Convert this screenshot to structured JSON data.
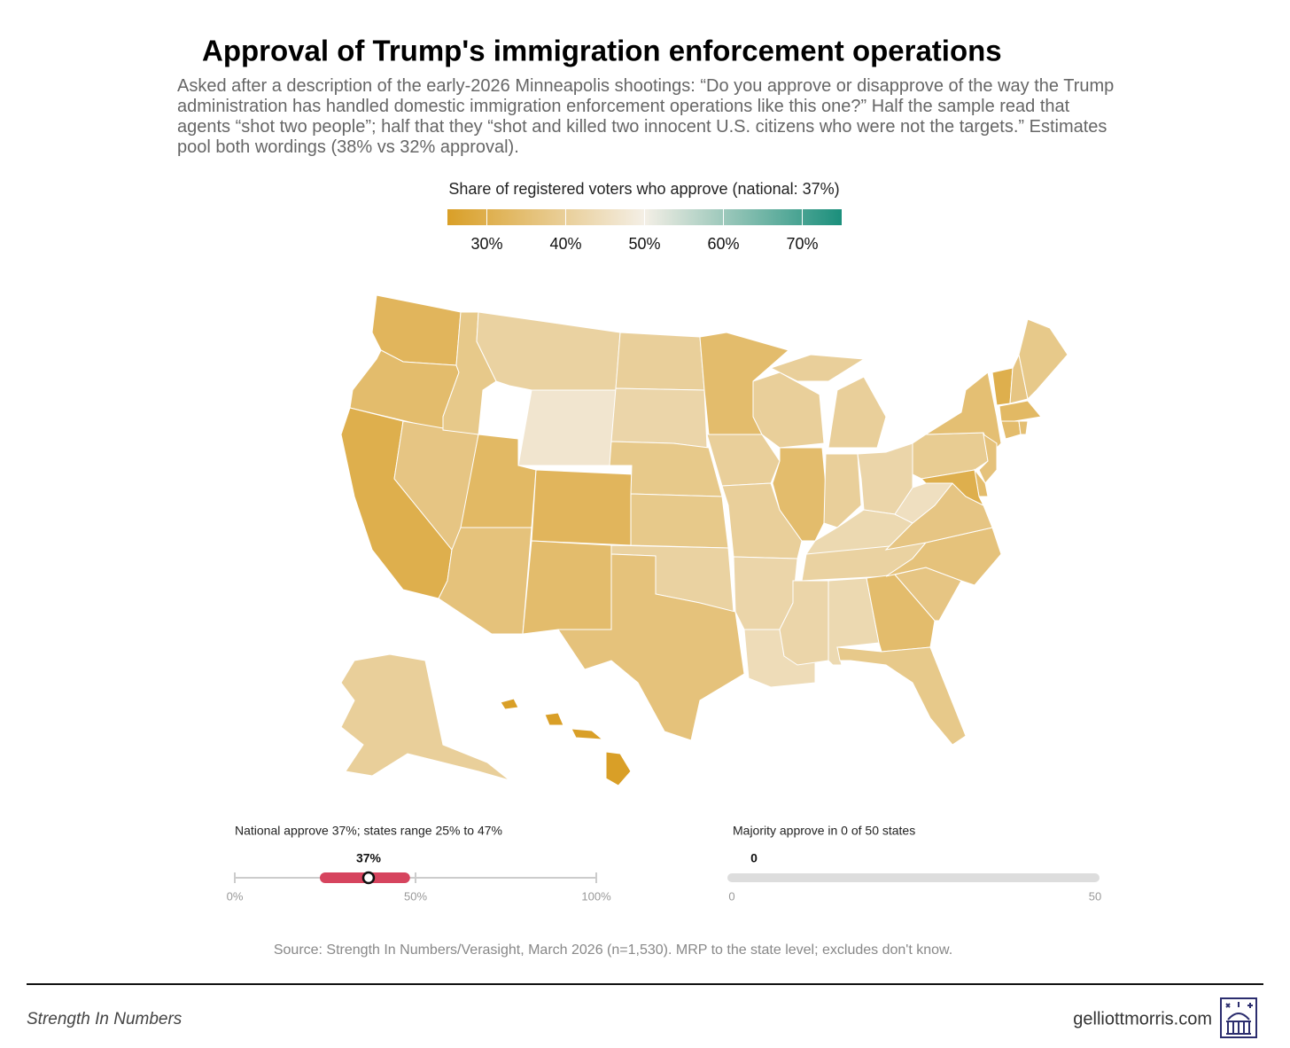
{
  "chart_data": {
    "type": "choropleth",
    "title": "Approval of Trump's immigration enforcement operations",
    "subtitle": "Asked after a description of the early-2026 Minneapolis shootings: “Do you approve or disapprove of the way the Trump administration has handled domestic immigration enforcement operations like this one?” Half the sample read that agents “shot two people”; half that they “shot and killed two innocent U.S. citizens who were not the targets.” Estimates pool both wordings (38% vs 32% approval).",
    "legend_title": "Share of registered voters who approve  (national: 37%)",
    "values": [
      32,
      34,
      30,
      37,
      38,
      41,
      47,
      33,
      36,
      32,
      34,
      40,
      42,
      38,
      38,
      41,
      36,
      34,
      40,
      40,
      42,
      44,
      40,
      34,
      40,
      40,
      42,
      43,
      41,
      42,
      43,
      34,
      38,
      37,
      36,
      37,
      45,
      39,
      35,
      30,
      37,
      38,
      33,
      34,
      35,
      36,
      34,
      30,
      40,
      25
    ],
    "colors": [
      "#d99f27",
      "#f4efe6",
      "#1b8f7c"
    ],
    "clim": [
      25,
      75
    ],
    "cticks": [
      {
        "value": 30,
        "label": "30%"
      },
      {
        "value": 40,
        "label": "40%"
      },
      {
        "value": 50,
        "label": "50%"
      },
      {
        "value": 60,
        "label": "60%"
      },
      {
        "value": 70,
        "label": "70%"
      }
    ]
  },
  "national_strip": {
    "title": "National approve 37%; states range 25% to 47%",
    "value": 37,
    "value_label": "37%",
    "range": [
      25,
      47
    ],
    "color": "#d6445e",
    "xlim": [
      0,
      100
    ],
    "xticks": [
      {
        "value": 0,
        "label": "0%"
      },
      {
        "value": 50,
        "label": "50%"
      },
      {
        "value": 100,
        "label": "100%"
      }
    ]
  },
  "majority_strip": {
    "title": "Majority approve in 0 of 50 states",
    "value": 0,
    "xlim": [
      0,
      50
    ],
    "xticks": [
      0,
      50
    ]
  },
  "source": "Source: Strength In Numbers/Verasight, March 2026 (n=1,530). MRP to the state level; excludes don't know.",
  "footer": {
    "brand": "Strength In Numbers",
    "site": "gelliottmorris.com"
  }
}
